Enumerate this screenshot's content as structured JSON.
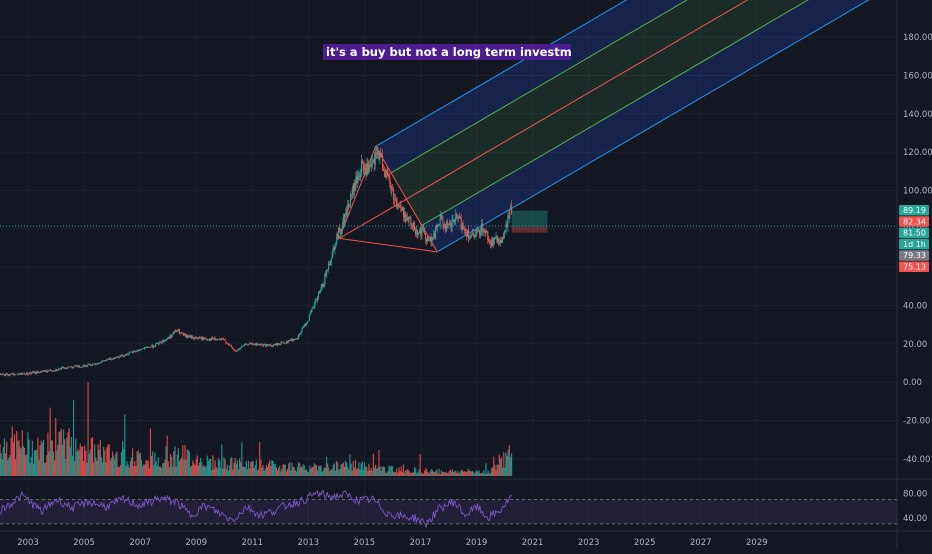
{
  "annotation": "it's a buy but not a long term investment.",
  "chart_data": {
    "type": "candlestick",
    "price_axis": {
      "range": [
        -50,
        190
      ],
      "ticks": [
        "180.00",
        "160.00",
        "140.00",
        "120.00",
        "100.00",
        "80.00",
        "60.00",
        "40.00",
        "20.00",
        "0.00",
        "-20.00",
        "-40.00"
      ]
    },
    "time_axis": {
      "range": [
        2002.0,
        2034.0
      ],
      "ticks": [
        "2003",
        "2005",
        "2007",
        "2009",
        "2011",
        "2013",
        "2015",
        "2017",
        "2019",
        "2021",
        "2023",
        "2025",
        "2027",
        "2029"
      ]
    },
    "price_series": [
      [
        2002.0,
        3.8
      ],
      [
        2003.0,
        4.5
      ],
      [
        2004.0,
        6.5
      ],
      [
        2004.5,
        8.0
      ],
      [
        2005.0,
        8.5
      ],
      [
        2005.5,
        10.0
      ],
      [
        2006.0,
        12.5
      ],
      [
        2006.5,
        14.5
      ],
      [
        2007.0,
        17.0
      ],
      [
        2007.5,
        19.0
      ],
      [
        2008.0,
        23.0
      ],
      [
        2008.3,
        27.0
      ],
      [
        2008.6,
        24.0
      ],
      [
        2009.0,
        23.0
      ],
      [
        2009.5,
        22.5
      ],
      [
        2010.0,
        22.0
      ],
      [
        2010.4,
        16.0
      ],
      [
        2010.8,
        20.0
      ],
      [
        2011.3,
        19.5
      ],
      [
        2011.7,
        19.0
      ],
      [
        2012.2,
        21.0
      ],
      [
        2012.6,
        23.0
      ],
      [
        2013.0,
        33.0
      ],
      [
        2013.5,
        50.0
      ],
      [
        2014.0,
        75.0
      ],
      [
        2014.3,
        86.0
      ],
      [
        2014.6,
        100.0
      ],
      [
        2014.9,
        112.0
      ],
      [
        2015.2,
        110.0
      ],
      [
        2015.5,
        120.0
      ],
      [
        2015.8,
        108.0
      ],
      [
        2016.1,
        95.0
      ],
      [
        2016.4,
        88.0
      ],
      [
        2016.8,
        80.0
      ],
      [
        2017.1,
        78.0
      ],
      [
        2017.4,
        73.0
      ],
      [
        2017.7,
        85.0
      ],
      [
        2018.0,
        80.0
      ],
      [
        2018.3,
        86.0
      ],
      [
        2018.6,
        79.0
      ],
      [
        2018.9,
        75.0
      ],
      [
        2019.2,
        81.0
      ],
      [
        2019.5,
        73.0
      ],
      [
        2019.8,
        74.0
      ],
      [
        2020.0,
        76.0
      ],
      [
        2020.15,
        88.0
      ],
      [
        2020.25,
        89.19
      ]
    ],
    "volume_series": [
      [
        2002.5,
        40
      ],
      [
        2003.5,
        32
      ],
      [
        2004.5,
        42
      ],
      [
        2005.5,
        30
      ],
      [
        2006.5,
        24
      ],
      [
        2007.5,
        20
      ],
      [
        2008.4,
        27
      ],
      [
        2009.5,
        17
      ],
      [
        2010.5,
        15
      ],
      [
        2011.5,
        13
      ],
      [
        2012.5,
        12
      ],
      [
        2013.5,
        10
      ],
      [
        2014.5,
        14
      ],
      [
        2015.5,
        9
      ],
      [
        2016.5,
        8
      ],
      [
        2017.5,
        6
      ],
      [
        2018.5,
        6
      ],
      [
        2019.5,
        6
      ],
      [
        2020.2,
        26
      ]
    ],
    "pitchfork": {
      "pivots": [
        [
          2014.1,
          75.0
        ],
        [
          2015.4,
          123.0
        ],
        [
          2017.6,
          68.0
        ]
      ],
      "end_time": 2034.0
    },
    "current_price": 81.5,
    "last_value_labels": [
      {
        "text": "89.19",
        "color": "#26a69a"
      },
      {
        "text": "82.34",
        "color": "#ef5350"
      },
      {
        "text": "81.50",
        "color": "#26a69a"
      },
      {
        "text": "1d 1h",
        "color": "#26a69a"
      },
      {
        "text": "79.33",
        "color": "#787b86"
      },
      {
        "text": "75.13",
        "color": "#ef5350"
      }
    ],
    "rsi": {
      "ticks": [
        "80.00",
        "40.00"
      ],
      "band": [
        30,
        70
      ],
      "range": [
        20,
        100
      ],
      "series": [
        [
          2002.0,
          52
        ],
        [
          2002.8,
          76
        ],
        [
          2003.5,
          50
        ],
        [
          2004.0,
          70
        ],
        [
          2004.6,
          56
        ],
        [
          2005.2,
          66
        ],
        [
          2005.8,
          58
        ],
        [
          2006.4,
          70
        ],
        [
          2007.0,
          60
        ],
        [
          2007.7,
          72
        ],
        [
          2008.3,
          66
        ],
        [
          2008.8,
          44
        ],
        [
          2009.3,
          60
        ],
        [
          2009.8,
          48
        ],
        [
          2010.3,
          36
        ],
        [
          2010.8,
          58
        ],
        [
          2011.3,
          44
        ],
        [
          2011.8,
          52
        ],
        [
          2012.3,
          62
        ],
        [
          2012.8,
          68
        ],
        [
          2013.3,
          80
        ],
        [
          2013.8,
          74
        ],
        [
          2014.3,
          78
        ],
        [
          2014.8,
          68
        ],
        [
          2015.3,
          70
        ],
        [
          2015.8,
          48
        ],
        [
          2016.3,
          42
        ],
        [
          2016.8,
          40
        ],
        [
          2017.2,
          30
        ],
        [
          2017.7,
          56
        ],
        [
          2018.2,
          66
        ],
        [
          2018.6,
          44
        ],
        [
          2019.0,
          58
        ],
        [
          2019.4,
          40
        ],
        [
          2019.8,
          50
        ],
        [
          2020.25,
          74
        ]
      ]
    }
  }
}
